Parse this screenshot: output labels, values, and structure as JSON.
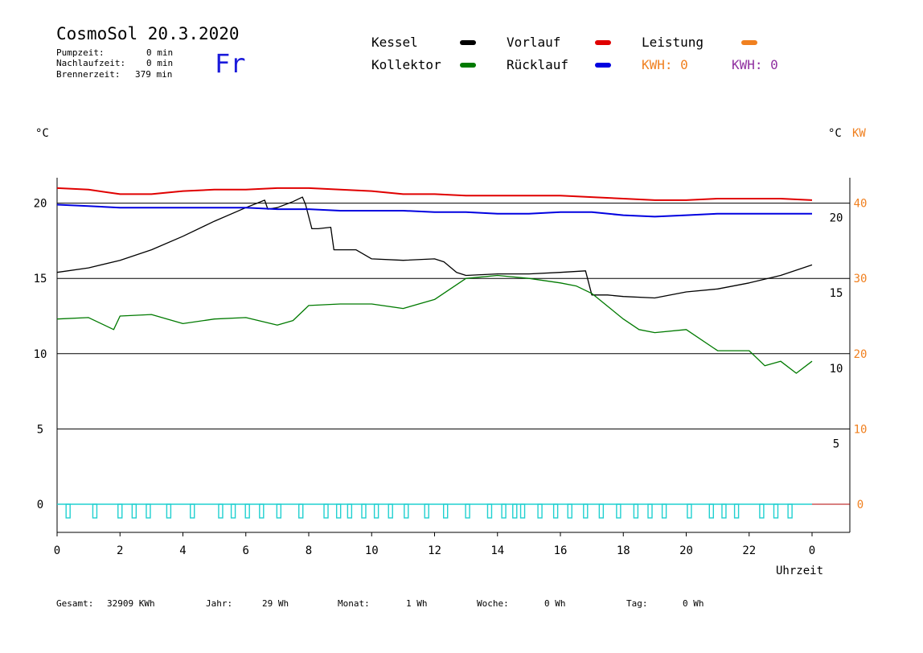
{
  "header": {
    "title": "CosmoSol 20.3.2020",
    "day": "Fr",
    "pumpzeit_label": "Pumpzeit:",
    "pumpzeit_value": "0 min",
    "nachlaufzeit_label": "Nachlaufzeit:",
    "nachlaufzeit_value": "0 min",
    "brennerzeit_label": "Brennerzeit:",
    "brennerzeit_value": "379 min"
  },
  "legend": {
    "kessel": "Kessel",
    "kollektor": "Kollektor",
    "vorlauf": "Vorlauf",
    "ruecklauf": "Rücklauf",
    "leistung": "Leistung",
    "kwh1": "KWH: 0",
    "kwh2": "KWH: 0"
  },
  "axes": {
    "left_unit": "°C",
    "right_unit": "°C",
    "right_unit2": "KW",
    "xlabel": "Uhrzeit"
  },
  "footer": {
    "gesamt_label": "Gesamt:",
    "gesamt_value": "32909 KWh",
    "jahr_label": "Jahr:",
    "jahr_value": "29 Wh",
    "monat_label": "Monat:",
    "monat_value": "1 Wh",
    "woche_label": "Woche:",
    "woche_value": "0 Wh",
    "tag_label": "Tag:",
    "tag_value": "0 Wh"
  },
  "colors": {
    "kessel": "#000000",
    "kollektor": "#007a00",
    "vorlauf": "#e00000",
    "ruecklauf": "#0000e0",
    "leistung": "#f08020",
    "kwh2": "#9030a0",
    "pump": "#20d0d0"
  },
  "chart_data": {
    "type": "line",
    "xlim": [
      0,
      24
    ],
    "ylim": [
      -2,
      22
    ],
    "x_ticks": [
      "0",
      "2",
      "4",
      "6",
      "8",
      "10",
      "12",
      "14",
      "16",
      "18",
      "20",
      "22",
      "0"
    ],
    "y_ticks_left": [
      "0",
      "5",
      "10",
      "15",
      "20"
    ],
    "y_ticks_right_temp": [
      "5",
      "10",
      "15",
      "20"
    ],
    "y_ticks_right_kw": [
      "0",
      "10",
      "20",
      "30",
      "40"
    ],
    "series": [
      {
        "name": "Kessel",
        "key": "kessel",
        "x": [
          0,
          1,
          2,
          3,
          4,
          5,
          6,
          6.6,
          6.7,
          7,
          7.5,
          7.8,
          7.9,
          8.1,
          8.3,
          8.7,
          8.8,
          9.5,
          10,
          11,
          12,
          12.3,
          12.7,
          13,
          14,
          15,
          16,
          16.8,
          17,
          17.5,
          18,
          19,
          20,
          21,
          22,
          23,
          24
        ],
        "y": [
          15.4,
          15.7,
          16.2,
          16.9,
          17.8,
          18.8,
          19.7,
          20.2,
          19.6,
          19.7,
          20.1,
          20.4,
          19.9,
          18.3,
          18.3,
          18.4,
          16.9,
          16.9,
          16.3,
          16.2,
          16.3,
          16.1,
          15.4,
          15.2,
          15.3,
          15.3,
          15.4,
          15.5,
          13.9,
          13.9,
          13.8,
          13.7,
          14.1,
          14.3,
          14.7,
          15.2,
          15.9
        ]
      },
      {
        "name": "Kollektor",
        "key": "kollektor",
        "x": [
          0,
          1,
          1.8,
          2,
          3,
          4,
          5,
          6,
          7,
          7.5,
          8,
          9,
          10,
          11,
          12,
          13,
          14,
          15,
          16,
          16.5,
          17,
          18,
          18.5,
          19,
          20,
          21,
          22,
          22.5,
          23,
          23.5,
          24
        ],
        "y": [
          12.3,
          12.4,
          11.6,
          12.5,
          12.6,
          12.0,
          12.3,
          12.4,
          11.9,
          12.2,
          13.2,
          13.3,
          13.3,
          13.0,
          13.6,
          15.0,
          15.2,
          15.0,
          14.7,
          14.5,
          14.0,
          12.3,
          11.6,
          11.4,
          11.6,
          10.2,
          10.2,
          9.2,
          9.5,
          8.7,
          9.5
        ]
      },
      {
        "name": "Vorlauf",
        "key": "vorlauf",
        "x": [
          0,
          1,
          2,
          3,
          4,
          5,
          6,
          7,
          8,
          9,
          10,
          11,
          12,
          13,
          14,
          15,
          16,
          17,
          18,
          19,
          20,
          21,
          22,
          23,
          24
        ],
        "y": [
          21.0,
          20.9,
          20.6,
          20.6,
          20.8,
          20.9,
          20.9,
          21.0,
          21.0,
          20.9,
          20.8,
          20.6,
          20.6,
          20.5,
          20.5,
          20.5,
          20.5,
          20.4,
          20.3,
          20.2,
          20.2,
          20.3,
          20.3,
          20.3,
          20.2
        ]
      },
      {
        "name": "Rücklauf",
        "key": "ruecklauf",
        "x": [
          0,
          1,
          2,
          3,
          4,
          5,
          6,
          7,
          8,
          9,
          10,
          11,
          12,
          13,
          14,
          15,
          16,
          17,
          18,
          19,
          20,
          21,
          22,
          23,
          24
        ],
        "y": [
          19.9,
          19.8,
          19.7,
          19.7,
          19.7,
          19.7,
          19.7,
          19.6,
          19.6,
          19.5,
          19.5,
          19.5,
          19.4,
          19.4,
          19.3,
          19.3,
          19.4,
          19.4,
          19.2,
          19.1,
          19.2,
          19.3,
          19.3,
          19.3,
          19.3
        ]
      }
    ]
  }
}
